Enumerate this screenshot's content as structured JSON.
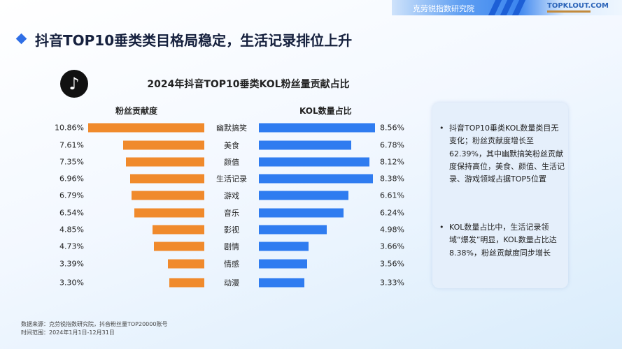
{
  "header": {
    "org": "克劳锐指数研究院",
    "logo": "TOPKLOUT.COM"
  },
  "page_title": "抖音TOP10垂类类目格局稳定，生活记录排位上升",
  "chart_data": {
    "type": "bar",
    "title": "2024年抖音TOP10垂类KOL粉丝量贡献占比",
    "categories": [
      "幽默搞笑",
      "美食",
      "颜值",
      "生活记录",
      "游戏",
      "音乐",
      "影视",
      "剧情",
      "情感",
      "动漫"
    ],
    "series": [
      {
        "name": "粉丝贡献度",
        "color": "#f08a2c",
        "values": [
          10.86,
          7.61,
          7.35,
          6.96,
          6.79,
          6.54,
          4.85,
          4.73,
          3.39,
          3.3
        ],
        "labels": [
          "10.86%",
          "7.61%",
          "7.35%",
          "6.96%",
          "6.79%",
          "6.54%",
          "4.85%",
          "4.73%",
          "3.39%",
          "3.30%"
        ]
      },
      {
        "name": "KOL数量占比",
        "color": "#2f7cf0",
        "values": [
          8.56,
          6.78,
          8.12,
          8.38,
          6.61,
          6.24,
          4.98,
          3.66,
          3.56,
          3.33
        ],
        "labels": [
          "8.56%",
          "6.78%",
          "8.12%",
          "8.38%",
          "6.61%",
          "6.24%",
          "4.98%",
          "3.66%",
          "3.56%",
          "3.33%"
        ]
      }
    ]
  },
  "panel": {
    "bullets": [
      "抖音TOP10垂类KOL数量类目无变化；粉丝贡献度增长至62.39%，其中幽默搞笑粉丝贡献度保持高位，美食、颜值、生活记录、游戏领域占据TOP5位置",
      "KOL数量占比中，生活记录领域“爆发”明显，KOL数量占比达8.38%，粉丝贡献度同步增长"
    ]
  },
  "footer": {
    "source": "数据来源：克劳锐指数研究院，抖音粉丝量TOP20000账号",
    "period": "时间范围：2024年1月1日-12月31日"
  }
}
